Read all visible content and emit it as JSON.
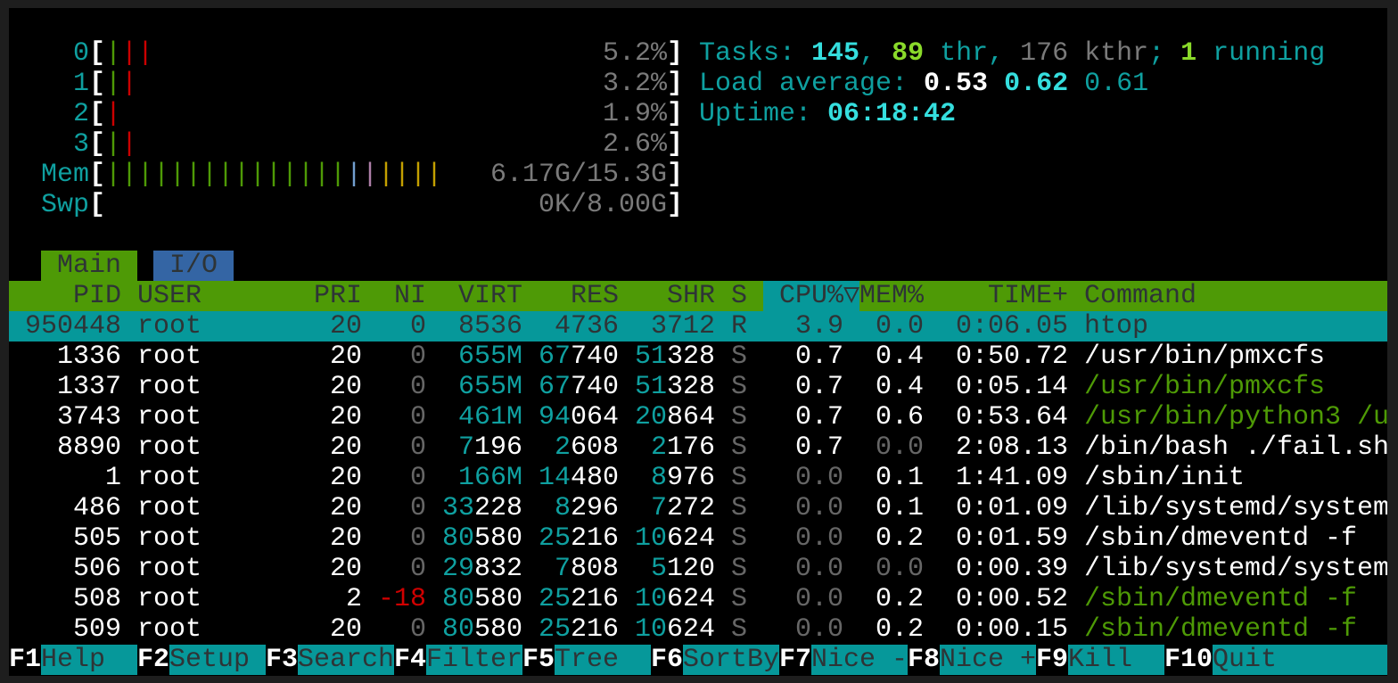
{
  "colors": {
    "header_bg": "#4e9a06",
    "selected_bg": "#06989a",
    "sort_column_bg": "#06989a",
    "tab_io_bg": "#3465a4",
    "teal": "#0fa0a0"
  },
  "meters": [
    {
      "label": "0",
      "value": "5.2%",
      "bars": [
        "normal",
        "kernel",
        "kernel"
      ]
    },
    {
      "label": "1",
      "value": "3.2%",
      "bars": [
        "normal",
        "kernel"
      ]
    },
    {
      "label": "2",
      "value": "1.9%",
      "bars": [
        "kernel"
      ]
    },
    {
      "label": "3",
      "value": "2.6%",
      "bars": [
        "normal",
        "kernel"
      ]
    },
    {
      "label": "Mem",
      "value": "6.17G/15.3G",
      "bars": [
        "used",
        "used",
        "used",
        "used",
        "used",
        "used",
        "used",
        "used",
        "used",
        "used",
        "used",
        "used",
        "used",
        "used",
        "used",
        "buffers",
        "shared",
        "cache",
        "cache",
        "cache",
        "cache"
      ]
    },
    {
      "label": "Swp",
      "value": "0K/8.00G",
      "bars": []
    }
  ],
  "meter_brackets": {
    "open": "[",
    "close": "]",
    "bar_char": "|"
  },
  "summary": {
    "tasks": [
      {
        "text": "Tasks: ",
        "style": "teal"
      },
      {
        "text": "145",
        "style": "bcyan"
      },
      {
        "text": ", ",
        "style": "teal"
      },
      {
        "text": "89",
        "style": "bgreen"
      },
      {
        "text": " thr, ",
        "style": "teal"
      },
      {
        "text": "176 kthr",
        "style": "mgray"
      },
      {
        "text": "; ",
        "style": "teal"
      },
      {
        "text": "1",
        "style": "bgreen"
      },
      {
        "text": " running",
        "style": "teal"
      }
    ],
    "load": [
      {
        "text": "Load average: ",
        "style": "teal"
      },
      {
        "text": "0.53",
        "style": "bwhite"
      },
      {
        "text": " ",
        "style": "teal"
      },
      {
        "text": "0.62",
        "style": "bcyan"
      },
      {
        "text": " ",
        "style": "teal"
      },
      {
        "text": "0.61",
        "style": "teal"
      }
    ],
    "uptime": [
      {
        "text": "Uptime: ",
        "style": "teal"
      },
      {
        "text": "06:18:42",
        "style": "bcyan"
      }
    ]
  },
  "tabs": [
    {
      "label": "Main",
      "active": true
    },
    {
      "label": "I/O",
      "active": false
    }
  ],
  "header": {
    "columns": {
      "pid": "PID",
      "user": "USER",
      "pri": "PRI",
      "ni": "NI",
      "virt": "VIRT",
      "res": "RES",
      "shr": "SHR",
      "s": "S",
      "cpu": "CPU%",
      "mem": "MEM%",
      "time": "TIME+",
      "command": "Command"
    },
    "sort_indicator": "▽",
    "sort_column": "cpu"
  },
  "processes": [
    {
      "pid": "950448",
      "user": "root",
      "pri": "20",
      "ni": "0",
      "virt": "8536",
      "res": "4736",
      "shr": "3712",
      "s": "R",
      "cpu": "3.9",
      "mem": "0.0",
      "time": "0:06.05",
      "command": "htop",
      "thread": false,
      "selected": true
    },
    {
      "pid": "1336",
      "user": "root",
      "pri": "20",
      "ni": "0",
      "virt": "655M",
      "res": "67740",
      "shr": "51328",
      "s": "S",
      "cpu": "0.7",
      "mem": "0.4",
      "time": "0:50.72",
      "command": "/usr/bin/pmxcfs",
      "thread": false
    },
    {
      "pid": "1337",
      "user": "root",
      "pri": "20",
      "ni": "0",
      "virt": "655M",
      "res": "67740",
      "shr": "51328",
      "s": "S",
      "cpu": "0.7",
      "mem": "0.4",
      "time": "0:05.14",
      "command": "/usr/bin/pmxcfs",
      "thread": true
    },
    {
      "pid": "3743",
      "user": "root",
      "pri": "20",
      "ni": "0",
      "virt": "461M",
      "res": "94064",
      "shr": "20864",
      "s": "S",
      "cpu": "0.7",
      "mem": "0.6",
      "time": "0:53.64",
      "command": "/usr/bin/python3 /u",
      "thread": true
    },
    {
      "pid": "8890",
      "user": "root",
      "pri": "20",
      "ni": "0",
      "virt": "7196",
      "res": "2608",
      "shr": "2176",
      "s": "S",
      "cpu": "0.7",
      "mem": "0.0",
      "time": "2:08.13",
      "command": "/bin/bash ./fail.sh",
      "thread": false
    },
    {
      "pid": "1",
      "user": "root",
      "pri": "20",
      "ni": "0",
      "virt": "166M",
      "res": "14480",
      "shr": "8976",
      "s": "S",
      "cpu": "0.0",
      "mem": "0.1",
      "time": "1:41.09",
      "command": "/sbin/init",
      "thread": false
    },
    {
      "pid": "486",
      "user": "root",
      "pri": "20",
      "ni": "0",
      "virt": "33228",
      "res": "8296",
      "shr": "7272",
      "s": "S",
      "cpu": "0.0",
      "mem": "0.1",
      "time": "0:01.09",
      "command": "/lib/systemd/system",
      "thread": false
    },
    {
      "pid": "505",
      "user": "root",
      "pri": "20",
      "ni": "0",
      "virt": "80580",
      "res": "25216",
      "shr": "10624",
      "s": "S",
      "cpu": "0.0",
      "mem": "0.2",
      "time": "0:01.59",
      "command": "/sbin/dmeventd -f",
      "thread": false
    },
    {
      "pid": "506",
      "user": "root",
      "pri": "20",
      "ni": "0",
      "virt": "29832",
      "res": "7808",
      "shr": "5120",
      "s": "S",
      "cpu": "0.0",
      "mem": "0.0",
      "time": "0:00.39",
      "command": "/lib/systemd/system",
      "thread": false
    },
    {
      "pid": "508",
      "user": "root",
      "pri": "2",
      "ni": "-18",
      "virt": "80580",
      "res": "25216",
      "shr": "10624",
      "s": "S",
      "cpu": "0.0",
      "mem": "0.2",
      "time": "0:00.52",
      "command": "/sbin/dmeventd -f",
      "thread": true
    },
    {
      "pid": "509",
      "user": "root",
      "pri": "20",
      "ni": "0",
      "virt": "80580",
      "res": "25216",
      "shr": "10624",
      "s": "S",
      "cpu": "0.0",
      "mem": "0.2",
      "time": "0:00.15",
      "command": "/sbin/dmeventd -f",
      "thread": true
    }
  ],
  "function_bar": [
    {
      "key": "F1",
      "label": "Help"
    },
    {
      "key": "F2",
      "label": "Setup"
    },
    {
      "key": "F3",
      "label": "Search"
    },
    {
      "key": "F4",
      "label": "Filter"
    },
    {
      "key": "F5",
      "label": "Tree"
    },
    {
      "key": "F6",
      "label": "SortBy"
    },
    {
      "key": "F7",
      "label": "Nice -"
    },
    {
      "key": "F8",
      "label": "Nice +"
    },
    {
      "key": "F9",
      "label": "Kill"
    },
    {
      "key": "F10",
      "label": "Quit"
    }
  ]
}
